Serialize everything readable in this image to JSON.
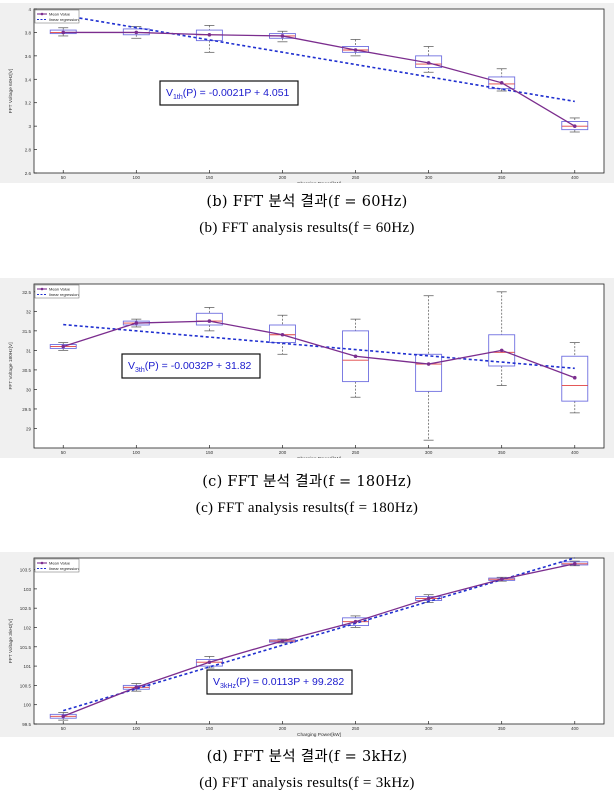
{
  "chart_data": [
    {
      "type": "box-line",
      "caption_ko": "(b) FFT 분석 결과(f = 60Hz)",
      "caption_en": "(b) FFT analysis results(f = 60Hz)",
      "xlabel": "Charging Power[kW]",
      "ylabel": "FFT Voltage 60Hz[V]",
      "x": [
        50,
        100,
        150,
        200,
        250,
        300,
        350,
        400
      ],
      "ylim": [
        2.6,
        4.0
      ],
      "yticks": [
        "2.6",
        "2.8",
        "3",
        "3.2",
        "3.4",
        "3.6",
        "3.8",
        "4"
      ],
      "legend": [
        "Mean Value",
        "linear regression"
      ],
      "equation": {
        "prefix": "V",
        "sub": "1th",
        "rest": "(P) = -0.0021P + 4.051"
      },
      "regression": {
        "slope": -0.0021,
        "intercept": 4.051
      },
      "mean": [
        3.8,
        3.8,
        3.78,
        3.77,
        3.65,
        3.54,
        3.37,
        3.0
      ],
      "boxes": [
        {
          "min": 3.77,
          "q1": 3.79,
          "med": 3.8,
          "q3": 3.82,
          "max": 3.84
        },
        {
          "min": 3.75,
          "q1": 3.78,
          "med": 3.8,
          "q3": 3.83,
          "max": 3.85
        },
        {
          "min": 3.63,
          "q1": 3.73,
          "med": 3.78,
          "q3": 3.82,
          "max": 3.86
        },
        {
          "min": 3.72,
          "q1": 3.75,
          "med": 3.77,
          "q3": 3.79,
          "max": 3.81
        },
        {
          "min": 3.6,
          "q1": 3.63,
          "med": 3.65,
          "q3": 3.68,
          "max": 3.74
        },
        {
          "min": 3.46,
          "q1": 3.5,
          "med": 3.53,
          "q3": 3.6,
          "max": 3.68
        },
        {
          "min": 3.3,
          "q1": 3.32,
          "med": 3.36,
          "q3": 3.42,
          "max": 3.49
        },
        {
          "min": 2.95,
          "q1": 2.97,
          "med": 3.0,
          "q3": 3.04,
          "max": 3.07
        }
      ]
    },
    {
      "type": "box-line",
      "caption_ko": "(c) FFT 분석 결과(f = 180Hz)",
      "caption_en": "(c) FFT analysis results(f = 180Hz)",
      "xlabel": "Charging Power[kW]",
      "ylabel": "FFT Voltage 180Hz[V]",
      "x": [
        50,
        100,
        150,
        200,
        250,
        300,
        350,
        400
      ],
      "ylim": [
        28.5,
        32.7
      ],
      "yticks": [
        "29",
        "29.5",
        "30",
        "30.5",
        "31",
        "31.5",
        "32",
        "32.5"
      ],
      "legend": [
        "Mean Value",
        "linear regression"
      ],
      "equation": {
        "prefix": "V",
        "sub": "3th",
        "rest": "(P) = -0.0032P + 31.82"
      },
      "regression": {
        "slope": -0.0032,
        "intercept": 31.82
      },
      "mean": [
        31.1,
        31.7,
        31.75,
        31.4,
        30.85,
        30.65,
        31.0,
        30.3
      ],
      "boxes": [
        {
          "min": 31.0,
          "q1": 31.05,
          "med": 31.1,
          "q3": 31.15,
          "max": 31.2
        },
        {
          "min": 31.6,
          "q1": 31.65,
          "med": 31.7,
          "q3": 31.75,
          "max": 31.8
        },
        {
          "min": 31.5,
          "q1": 31.65,
          "med": 31.75,
          "q3": 31.95,
          "max": 32.1
        },
        {
          "min": 30.9,
          "q1": 31.2,
          "med": 31.4,
          "q3": 31.65,
          "max": 31.9
        },
        {
          "min": 29.8,
          "q1": 30.2,
          "med": 30.75,
          "q3": 31.5,
          "max": 31.8
        },
        {
          "min": 28.7,
          "q1": 29.95,
          "med": 30.65,
          "q3": 30.9,
          "max": 32.4
        },
        {
          "min": 30.1,
          "q1": 30.6,
          "med": 30.95,
          "q3": 31.4,
          "max": 32.5
        },
        {
          "min": 29.4,
          "q1": 29.7,
          "med": 30.1,
          "q3": 30.85,
          "max": 31.2
        }
      ]
    },
    {
      "type": "box-line",
      "caption_ko": "(d) FFT 분석 결과(f = 3kHz)",
      "caption_en": "(d) FFT analysis results(f = 3kHz)",
      "xlabel": "Charging Power[kW]",
      "ylabel": "FFT Voltage 3kHz[V]",
      "x": [
        50,
        100,
        150,
        200,
        250,
        300,
        350,
        400
      ],
      "ylim": [
        99.5,
        103.8
      ],
      "yticks": [
        "99.5",
        "100",
        "100.5",
        "101",
        "101.5",
        "102",
        "102.5",
        "103",
        "103.5"
      ],
      "legend": [
        "Mean Value",
        "linear regression"
      ],
      "equation": {
        "prefix": "V",
        "sub": "3kHz",
        "rest": "(P) = 0.0113P + 99.282"
      },
      "regression": {
        "slope": 0.0113,
        "intercept": 99.282
      },
      "mean": [
        99.7,
        100.45,
        101.1,
        101.65,
        102.15,
        102.75,
        103.25,
        103.65
      ],
      "boxes": [
        {
          "min": 99.6,
          "q1": 99.65,
          "med": 99.7,
          "q3": 99.75,
          "max": 99.8
        },
        {
          "min": 100.35,
          "q1": 100.4,
          "med": 100.45,
          "q3": 100.5,
          "max": 100.55
        },
        {
          "min": 100.95,
          "q1": 101.0,
          "med": 101.1,
          "q3": 101.17,
          "max": 101.25
        },
        {
          "min": 101.6,
          "q1": 101.62,
          "med": 101.65,
          "q3": 101.68,
          "max": 101.7
        },
        {
          "min": 102.0,
          "q1": 102.05,
          "med": 102.15,
          "q3": 102.25,
          "max": 102.3
        },
        {
          "min": 102.65,
          "q1": 102.7,
          "med": 102.75,
          "q3": 102.8,
          "max": 102.85
        },
        {
          "min": 103.2,
          "q1": 103.22,
          "med": 103.25,
          "q3": 103.28,
          "max": 103.3
        },
        {
          "min": 103.6,
          "q1": 103.62,
          "med": 103.65,
          "q3": 103.7,
          "max": 103.72
        }
      ]
    }
  ],
  "colors": {
    "mean_line": "#7b2d8e",
    "regression": "#1f2fd0",
    "box": "#6f6fe0",
    "median": "#e04040",
    "whisker": "#666666",
    "equation_text": "#1a1acd"
  }
}
